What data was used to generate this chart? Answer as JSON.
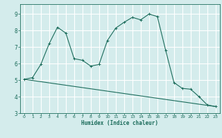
{
  "xlabel": "Humidex (Indice chaleur)",
  "bg_color": "#d4ecec",
  "grid_color": "#ffffff",
  "line_color": "#1a6b5a",
  "xlim": [
    -0.5,
    23.5
  ],
  "ylim": [
    3.0,
    9.6
  ],
  "xticks": [
    0,
    1,
    2,
    3,
    4,
    5,
    6,
    7,
    8,
    9,
    10,
    11,
    12,
    13,
    14,
    15,
    16,
    17,
    18,
    19,
    20,
    21,
    22,
    23
  ],
  "yticks": [
    3,
    4,
    5,
    6,
    7,
    8,
    9
  ],
  "line1_x": [
    0,
    1,
    2,
    3,
    4,
    5,
    6,
    7,
    8,
    9,
    10,
    11,
    12,
    13,
    14,
    15,
    16,
    17,
    18,
    19,
    20,
    21,
    22,
    23
  ],
  "line1_y": [
    5.05,
    5.15,
    5.95,
    7.2,
    8.2,
    7.85,
    6.3,
    6.2,
    5.85,
    5.95,
    7.4,
    8.15,
    8.5,
    8.8,
    8.65,
    9.0,
    8.85,
    6.8,
    4.85,
    4.5,
    4.45,
    4.0,
    3.5,
    3.4
  ],
  "line2_x": [
    0,
    23
  ],
  "line2_y": [
    5.05,
    3.4
  ]
}
